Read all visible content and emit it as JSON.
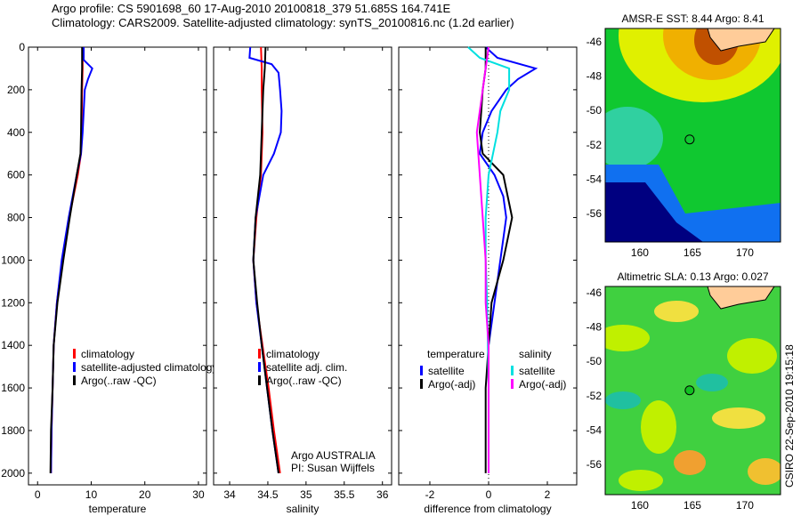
{
  "title": {
    "line1": "Argo profile: CS 5901698_60 17-Aug-2010 20100818_379 51.685S 164.741E",
    "line2": "Climatology: CARS2009. Satellite-adjusted climatology: synTS_20100816.nc (1.2d earlier)"
  },
  "side_label": "CSIRO 22-Sep-2010 19:15:18",
  "chart_data": [
    {
      "type": "line",
      "xlabel": "temperature",
      "ylabel": "",
      "xlim": [
        -1.7,
        31.5
      ],
      "ylim": [
        2055,
        0
      ],
      "xticks": [
        0,
        10,
        20,
        30
      ],
      "yticks": [
        0,
        200,
        400,
        600,
        800,
        1000,
        1200,
        1400,
        1600,
        1800,
        2000
      ],
      "legend": [
        "climatology",
        "satellite-adjusted climatology",
        "Argo(..raw -QC)"
      ],
      "legend_position": "lower-right",
      "series": [
        {
          "name": "climatology",
          "color": "#ff0000",
          "depth": [
            0,
            100,
            200,
            400,
            500,
            600,
            800,
            1000,
            1200,
            1400,
            1600,
            1800,
            2000
          ],
          "values": [
            8.4,
            8.4,
            8.3,
            8.2,
            8.1,
            7.5,
            5.9,
            4.6,
            3.6,
            3.0,
            2.8,
            2.6,
            2.5
          ]
        },
        {
          "name": "satellite-adjusted climatology",
          "color": "#0000ff",
          "depth": [
            0,
            60,
            100,
            150,
            200,
            400,
            500,
            600,
            800,
            1000,
            1200,
            1400,
            1600,
            1800,
            2000
          ],
          "values": [
            8.6,
            8.6,
            10.2,
            9.4,
            8.8,
            8.4,
            8.1,
            7.3,
            5.8,
            4.5,
            3.6,
            3.0,
            2.8,
            2.6,
            2.5
          ]
        },
        {
          "name": "Argo(..raw -QC)",
          "color": "#000000",
          "depth": [
            0,
            100,
            200,
            400,
            500,
            600,
            800,
            1000,
            1200,
            1400,
            1600,
            1800,
            2000
          ],
          "values": [
            8.3,
            8.3,
            8.2,
            8.1,
            8.0,
            7.3,
            6.0,
            4.8,
            3.7,
            3.0,
            2.8,
            2.5,
            2.4
          ]
        }
      ]
    },
    {
      "type": "line",
      "xlabel": "salinity",
      "ylabel": "",
      "xlim": [
        33.79,
        36.12
      ],
      "ylim": [
        2055,
        0
      ],
      "xticks": [
        34,
        34.5,
        35,
        35.5,
        36
      ],
      "legend": [
        "climatology",
        "satellite adj. clim.",
        "Argo(..raw -QC)"
      ],
      "legend_position": "lower-right",
      "annotation": [
        "Argo AUSTRALIA",
        "PI: Susan Wijffels"
      ],
      "series": [
        {
          "name": "climatology",
          "color": "#ff0000",
          "depth": [
            0,
            100,
            200,
            400,
            600,
            800,
            1000,
            1200,
            1400,
            1600,
            1800,
            2000
          ],
          "values": [
            34.41,
            34.42,
            34.42,
            34.43,
            34.41,
            34.35,
            34.31,
            34.35,
            34.43,
            34.51,
            34.58,
            34.66
          ]
        },
        {
          "name": "satellite adj. clim.",
          "color": "#0000ff",
          "depth": [
            0,
            50,
            80,
            120,
            200,
            300,
            400,
            500,
            600,
            800,
            1000,
            1200,
            1400,
            1600,
            1800,
            2000
          ],
          "values": [
            34.27,
            34.26,
            34.55,
            34.64,
            34.66,
            34.68,
            34.67,
            34.58,
            34.44,
            34.34,
            34.31,
            34.35,
            34.42,
            34.49,
            34.56,
            34.64
          ]
        },
        {
          "name": "Argo(..raw -QC)",
          "color": "#000000",
          "depth": [
            0,
            100,
            200,
            400,
            600,
            800,
            1000,
            1200,
            1400,
            1600,
            1800,
            2000
          ],
          "values": [
            34.47,
            34.46,
            34.44,
            34.42,
            34.4,
            34.34,
            34.31,
            34.36,
            34.42,
            34.49,
            34.56,
            34.64
          ]
        }
      ]
    },
    {
      "type": "line",
      "xlabel": "difference from climatology",
      "ylabel": "",
      "xlim": [
        -3.06,
        3.0
      ],
      "ylim": [
        2055,
        0
      ],
      "xticks": [
        -2,
        0,
        2
      ],
      "legend": {
        "temperature_header": "temperature",
        "salinity_header": "salinity",
        "items": [
          "satellite",
          "Argo(-adj)",
          "satellite",
          "Argo(-adj)"
        ]
      },
      "series": [
        {
          "name": "temperature satellite",
          "color": "#0000ff",
          "depth": [
            0,
            50,
            100,
            150,
            200,
            300,
            400,
            500,
            600,
            700,
            800,
            1000,
            1200,
            1400,
            1600,
            2000
          ],
          "values": [
            -0.1,
            0.3,
            1.6,
            1.0,
            0.6,
            0.1,
            -0.2,
            -0.3,
            0.2,
            0.5,
            0.6,
            0.4,
            0.2,
            0.0,
            0.0,
            0.0
          ]
        },
        {
          "name": "temperature Argo(-adj)",
          "color": "#000000",
          "depth": [
            0,
            100,
            200,
            400,
            500,
            600,
            800,
            1000,
            1200,
            1400,
            1600,
            2000
          ],
          "values": [
            -0.1,
            -0.1,
            -0.2,
            -0.3,
            -0.2,
            0.5,
            0.8,
            0.5,
            0.1,
            0.0,
            -0.1,
            -0.1
          ]
        },
        {
          "name": "salinity satellite",
          "color": "#00e0e0",
          "depth": [
            0,
            50,
            100,
            200,
            300,
            400,
            600,
            800,
            1000,
            1200,
            1600,
            2000
          ],
          "values": [
            -0.7,
            -0.3,
            0.7,
            0.7,
            0.4,
            0.3,
            0.0,
            -0.1,
            -0.1,
            -0.05,
            0.0,
            0.0
          ]
        },
        {
          "name": "salinity Argo(-adj)",
          "color": "#ff00ff",
          "depth": [
            0,
            100,
            200,
            400,
            600,
            800,
            1000,
            1200,
            1400,
            1600,
            2000
          ],
          "values": [
            0.0,
            -0.1,
            -0.2,
            -0.4,
            -0.3,
            -0.2,
            -0.1,
            -0.1,
            0.0,
            0.0,
            0.0
          ]
        }
      ]
    },
    {
      "type": "heatmap",
      "title": "AMSR-E SST: 8.44 Argo: 8.41",
      "xlim": [
        156.7,
        173.4
      ],
      "ylim": [
        -57.6,
        -45.2
      ],
      "xticks": [
        160,
        165,
        170
      ],
      "yticks": [
        -46,
        -48,
        -50,
        -52,
        -54,
        -56
      ],
      "marker": {
        "lon": 164.741,
        "lat": -51.685
      }
    },
    {
      "type": "heatmap",
      "title": "Altimetric SLA: 0.13 Argo: 0.027",
      "xlim": [
        156.7,
        173.4
      ],
      "ylim": [
        -57.6,
        -45.5
      ],
      "xticks": [
        160,
        165,
        170
      ],
      "yticks": [
        -46,
        -48,
        -50,
        -52,
        -54,
        -56
      ],
      "marker": {
        "lon": 164.741,
        "lat": -51.685
      }
    }
  ]
}
